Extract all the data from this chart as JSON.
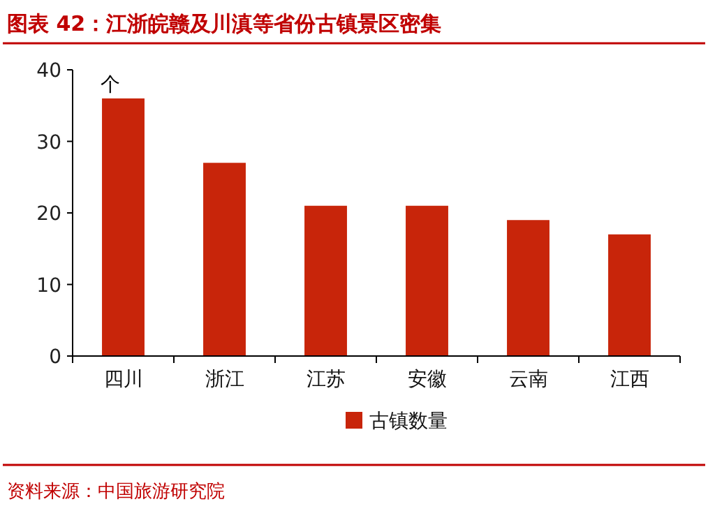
{
  "chart_data": {
    "type": "bar",
    "title": "图表 42：江浙皖赣及川滇等省份古镇景区密集",
    "ylabel": "个",
    "categories": [
      "四川",
      "浙江",
      "江苏",
      "安徽",
      "云南",
      "江西"
    ],
    "series": [
      {
        "name": "古镇数量",
        "color": "#c8250a",
        "values": [
          36,
          27,
          21,
          21,
          19,
          17
        ]
      }
    ],
    "ylim": [
      0,
      40
    ],
    "yticks": [
      0,
      10,
      20,
      30,
      40
    ],
    "legend": "bottom",
    "grid": false,
    "annotations": [
      "资料来源：中国旅游研究院"
    ]
  }
}
